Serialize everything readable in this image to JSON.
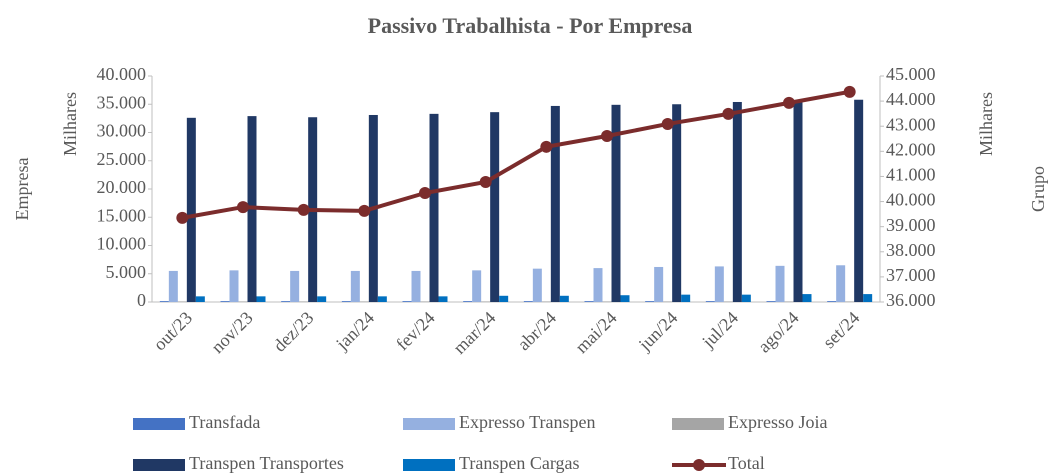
{
  "chart_data": {
    "type": "bar",
    "title": "Passivo Trabalhista - Por Empresa",
    "y_outer_label": "Empresa",
    "y_label": "Milhares",
    "y2_label": "Milhares",
    "y2_outer_label": "Grupo",
    "categories": [
      "out/23",
      "nov/23",
      "dez/23",
      "jan/24",
      "fev/24",
      "mar/24",
      "abr/24",
      "mai/24",
      "jun/24",
      "jul/24",
      "ago/24",
      "set/24"
    ],
    "ylim": [
      0,
      40000
    ],
    "yticks": [
      0,
      {
        "value": 5000,
        "label": "5.000"
      },
      {
        "value": 10000,
        "label": "10.000"
      },
      {
        "value": 15000,
        "label": "15.000"
      },
      {
        "value": 20000,
        "label": "20.000"
      },
      {
        "value": 25000,
        "label": "25.000"
      },
      {
        "value": 30000,
        "label": "30.000"
      },
      {
        "value": 35000,
        "label": "35.000"
      },
      {
        "value": 40000,
        "label": "40.000"
      }
    ],
    "y2lim": [
      36000,
      45000
    ],
    "y2ticks": [
      {
        "value": 36000,
        "label": "36.000"
      },
      {
        "value": 37000,
        "label": "37.000"
      },
      {
        "value": 38000,
        "label": "38.000"
      },
      {
        "value": 39000,
        "label": "39.000"
      },
      {
        "value": 40000,
        "label": "40.000"
      },
      {
        "value": 41000,
        "label": "41.000"
      },
      {
        "value": 42000,
        "label": "42.000"
      },
      {
        "value": 43000,
        "label": "43.000"
      },
      {
        "value": 44000,
        "label": "44.000"
      },
      {
        "value": 45000,
        "label": "45.000"
      }
    ],
    "series": [
      {
        "name": "Transfada",
        "color": "#4472c4",
        "values": [
          150,
          150,
          150,
          150,
          150,
          150,
          150,
          150,
          150,
          150,
          150,
          150
        ]
      },
      {
        "name": "Expresso Transpen",
        "color": "#95b0e0",
        "values": [
          5500,
          5600,
          5500,
          5500,
          5500,
          5600,
          5900,
          6000,
          6200,
          6300,
          6400,
          6500
        ]
      },
      {
        "name": "Expresso Joia",
        "color": "#a5a5a5",
        "values": [
          100,
          100,
          100,
          100,
          100,
          100,
          100,
          100,
          100,
          100,
          100,
          100
        ]
      },
      {
        "name": "Transpen Transportes",
        "color": "#203864",
        "values": [
          32600,
          32900,
          32700,
          33100,
          33300,
          33600,
          34700,
          34900,
          35000,
          35400,
          35600,
          35800
        ]
      },
      {
        "name": "Transpen Cargas",
        "color": "#0070c0",
        "values": [
          1000,
          1000,
          1000,
          1000,
          1000,
          1100,
          1100,
          1200,
          1300,
          1300,
          1400,
          1400
        ]
      },
      {
        "name": "Total",
        "type": "line",
        "axis": "y2",
        "color": "#7b2c2c",
        "values": [
          39350,
          39780,
          39670,
          39630,
          40340,
          40780,
          42180,
          42610,
          43090,
          43490,
          43930,
          44370
        ]
      }
    ]
  }
}
